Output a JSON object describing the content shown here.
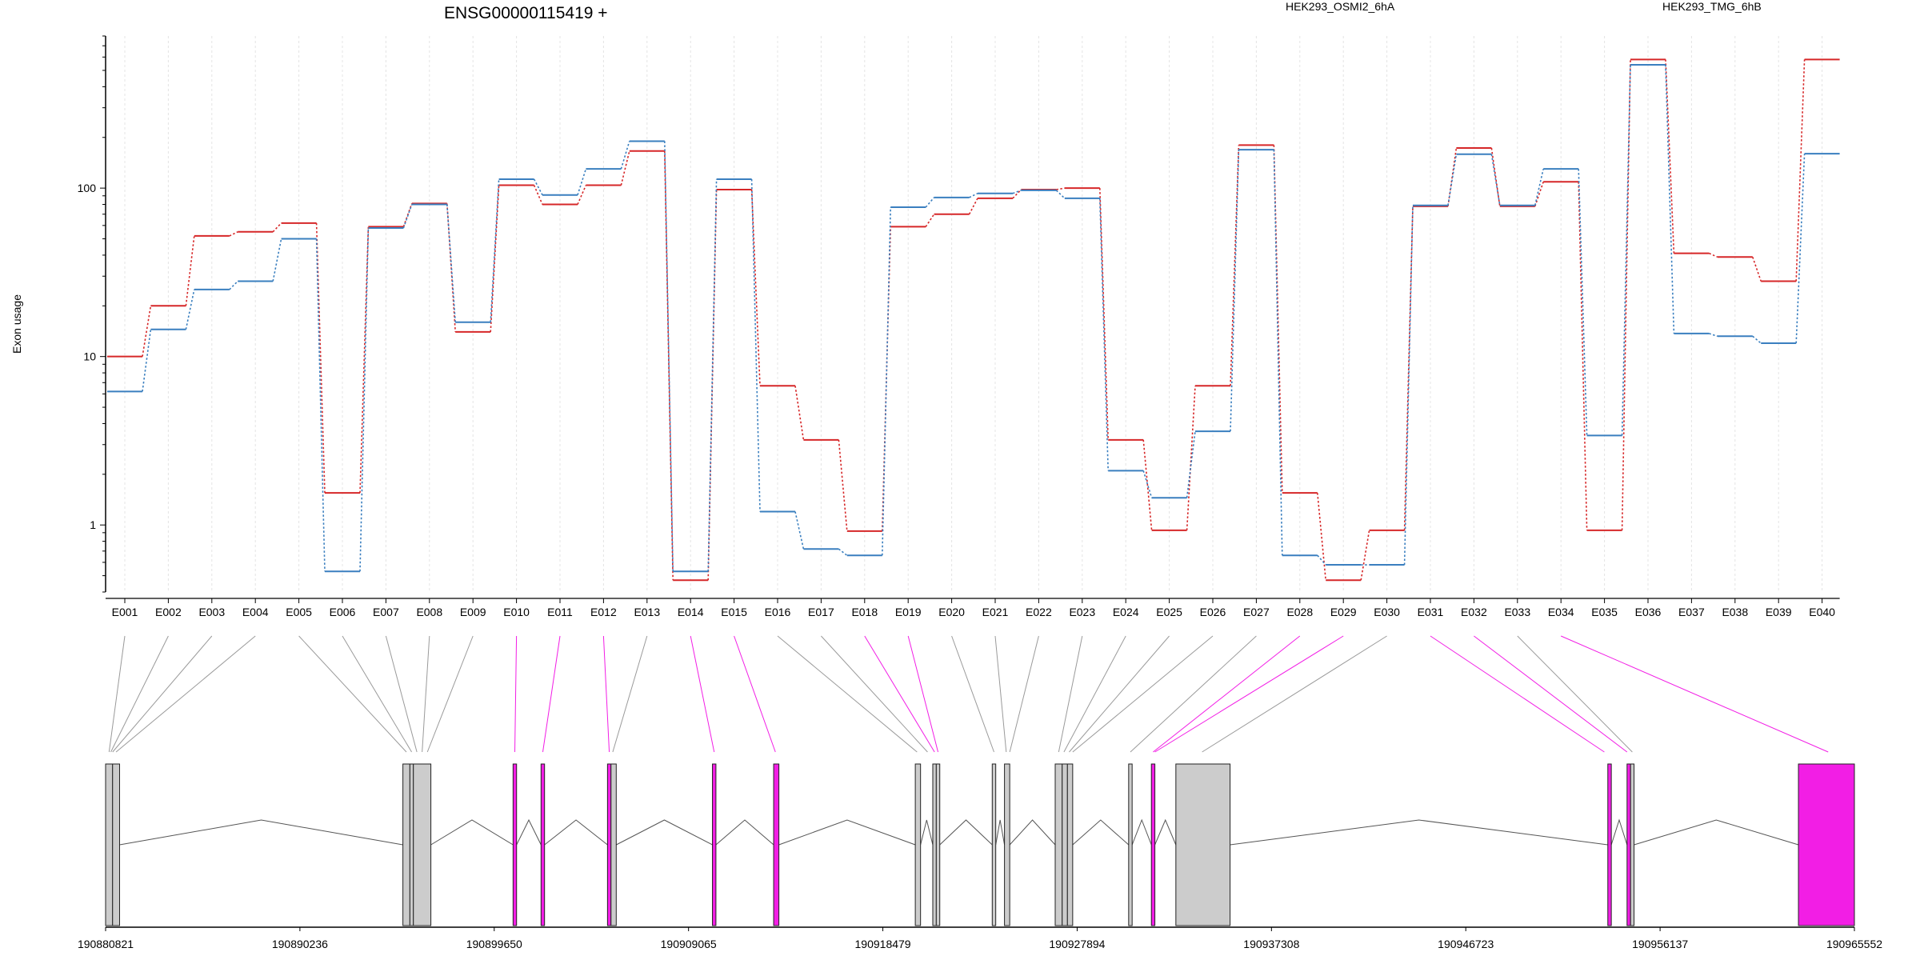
{
  "chart_data": {
    "type": "line",
    "title": "ENSG00000115419 +",
    "ylabel": "Exon usage",
    "yscale": "log",
    "ylim": [
      0.4,
      800
    ],
    "yticks": [
      {
        "value": 1,
        "label": "1"
      },
      {
        "value": 10,
        "label": "10"
      },
      {
        "value": 100,
        "label": "100"
      }
    ],
    "categories": [
      "E001",
      "E002",
      "E003",
      "E004",
      "E005",
      "E006",
      "E007",
      "E008",
      "E009",
      "E010",
      "E011",
      "E012",
      "E013",
      "E014",
      "E015",
      "E016",
      "E017",
      "E018",
      "E019",
      "E020",
      "E021",
      "E022",
      "E023",
      "E024",
      "E025",
      "E026",
      "E027",
      "E028",
      "E029",
      "E030",
      "E031",
      "E032",
      "E033",
      "E034",
      "E035",
      "E036",
      "E037",
      "E038",
      "E039",
      "E040"
    ],
    "series": [
      {
        "name": "HEK293_OSMI2_6hA",
        "color": "#d62728",
        "values": [
          10,
          20,
          52,
          55,
          62,
          1.55,
          59,
          81,
          14,
          104,
          80,
          104,
          166,
          0.47,
          98,
          6.7,
          3.2,
          0.92,
          59,
          70,
          87,
          98,
          100,
          3.2,
          0.93,
          6.7,
          180,
          1.55,
          0.47,
          0.93,
          78,
          173,
          78,
          109,
          0.93,
          580,
          41,
          39,
          28,
          580
        ]
      },
      {
        "name": "HEK293_TMG_6hB",
        "color": "#3a7fbf",
        "values": [
          6.2,
          14.5,
          25,
          28,
          50,
          0.53,
          58,
          80,
          16,
          113,
          91,
          130,
          190,
          0.53,
          113,
          1.2,
          0.72,
          0.66,
          77,
          88,
          93,
          97,
          87,
          2.1,
          1.45,
          3.6,
          169,
          0.66,
          0.58,
          0.58,
          79,
          159,
          79,
          130,
          3.4,
          540,
          13.7,
          13.2,
          12,
          160
        ]
      }
    ],
    "gene_model": {
      "coord_start": 190880821,
      "coord_end": 190965552,
      "ticks": [
        "190880821",
        "190890236",
        "190899650",
        "190909065",
        "190918479",
        "190927894",
        "190937308",
        "190946723",
        "190956137",
        "190965552"
      ],
      "highlight_color": "#f21ee5",
      "exon_fill": "#cccccc",
      "exons": [
        {
          "s": 0.0,
          "e": 0.004,
          "h": false
        },
        {
          "s": 0.004,
          "e": 0.008,
          "h": false
        },
        {
          "s": 0.17,
          "e": 0.174,
          "h": false
        },
        {
          "s": 0.174,
          "e": 0.176,
          "h": false
        },
        {
          "s": 0.176,
          "e": 0.186,
          "h": false
        },
        {
          "s": 0.233,
          "e": 0.235,
          "h": true
        },
        {
          "s": 0.249,
          "e": 0.251,
          "h": true
        },
        {
          "s": 0.287,
          "e": 0.289,
          "h": true
        },
        {
          "s": 0.289,
          "e": 0.292,
          "h": false
        },
        {
          "s": 0.347,
          "e": 0.349,
          "h": true
        },
        {
          "s": 0.382,
          "e": 0.385,
          "h": true
        },
        {
          "s": 0.463,
          "e": 0.466,
          "h": false
        },
        {
          "s": 0.473,
          "e": 0.475,
          "h": false
        },
        {
          "s": 0.475,
          "e": 0.477,
          "h": false
        },
        {
          "s": 0.507,
          "e": 0.509,
          "h": false
        },
        {
          "s": 0.514,
          "e": 0.517,
          "h": false
        },
        {
          "s": 0.543,
          "e": 0.547,
          "h": false
        },
        {
          "s": 0.547,
          "e": 0.55,
          "h": false
        },
        {
          "s": 0.55,
          "e": 0.553,
          "h": false
        },
        {
          "s": 0.585,
          "e": 0.587,
          "h": false
        },
        {
          "s": 0.598,
          "e": 0.6,
          "h": true
        },
        {
          "s": 0.612,
          "e": 0.643,
          "h": false
        },
        {
          "s": 0.859,
          "e": 0.861,
          "h": true
        },
        {
          "s": 0.87,
          "e": 0.872,
          "h": true
        },
        {
          "s": 0.872,
          "e": 0.874,
          "h": false
        },
        {
          "s": 0.968,
          "e": 1.0,
          "h": true
        }
      ],
      "connectors": [
        {
          "x": 0.002,
          "h": false
        },
        {
          "x": 0.003,
          "h": false
        },
        {
          "x": 0.004,
          "h": false
        },
        {
          "x": 0.006,
          "h": false
        },
        {
          "x": 0.172,
          "h": false
        },
        {
          "x": 0.175,
          "h": false
        },
        {
          "x": 0.178,
          "h": false
        },
        {
          "x": 0.181,
          "h": false
        },
        {
          "x": 0.184,
          "h": false
        },
        {
          "x": 0.234,
          "h": true
        },
        {
          "x": 0.25,
          "h": true
        },
        {
          "x": 0.288,
          "h": true
        },
        {
          "x": 0.29,
          "h": false
        },
        {
          "x": 0.348,
          "h": true
        },
        {
          "x": 0.383,
          "h": true
        },
        {
          "x": 0.464,
          "h": false
        },
        {
          "x": 0.47,
          "h": false
        },
        {
          "x": 0.474,
          "h": true
        },
        {
          "x": 0.476,
          "h": true
        },
        {
          "x": 0.508,
          "h": false
        },
        {
          "x": 0.515,
          "h": false
        },
        {
          "x": 0.517,
          "h": false
        },
        {
          "x": 0.545,
          "h": false
        },
        {
          "x": 0.548,
          "h": false
        },
        {
          "x": 0.551,
          "h": false
        },
        {
          "x": 0.553,
          "h": false
        },
        {
          "x": 0.586,
          "h": false
        },
        {
          "x": 0.599,
          "h": true
        },
        {
          "x": 0.6,
          "h": true
        },
        {
          "x": 0.627,
          "h": false
        },
        {
          "x": 0.857,
          "h": true
        },
        {
          "x": 0.87,
          "h": true
        },
        {
          "x": 0.873,
          "h": false
        },
        {
          "x": 0.985,
          "h": true
        }
      ],
      "introns": [
        {
          "a": 0.008,
          "b": 0.17
        },
        {
          "a": 0.186,
          "b": 0.233
        },
        {
          "a": 0.235,
          "b": 0.249
        },
        {
          "a": 0.251,
          "b": 0.287
        },
        {
          "a": 0.292,
          "b": 0.347
        },
        {
          "a": 0.349,
          "b": 0.382
        },
        {
          "a": 0.385,
          "b": 0.463
        },
        {
          "a": 0.466,
          "b": 0.473
        },
        {
          "a": 0.477,
          "b": 0.507
        },
        {
          "a": 0.509,
          "b": 0.514
        },
        {
          "a": 0.517,
          "b": 0.543
        },
        {
          "a": 0.553,
          "b": 0.585
        },
        {
          "a": 0.587,
          "b": 0.598
        },
        {
          "a": 0.6,
          "b": 0.612
        },
        {
          "a": 0.643,
          "b": 0.859
        },
        {
          "a": 0.861,
          "b": 0.87
        },
        {
          "a": 0.874,
          "b": 0.968
        }
      ]
    }
  }
}
